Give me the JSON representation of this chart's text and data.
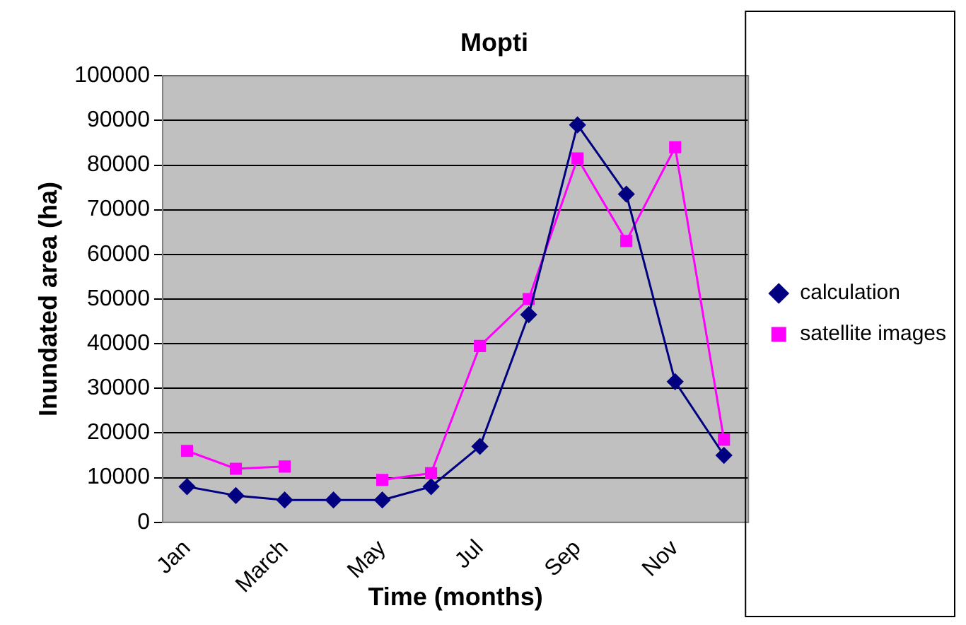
{
  "chart_data": {
    "type": "line",
    "title": "Mopti",
    "xlabel": "Time (months)",
    "ylabel": "Inundated area (ha)",
    "categories": [
      "Jan",
      null,
      "March",
      null,
      "May",
      null,
      "Jul",
      null,
      "Sep",
      null,
      "Nov",
      null
    ],
    "series": [
      {
        "name": "calculation",
        "color": "#000080",
        "marker": "diamond",
        "values": [
          8000,
          6000,
          5000,
          5000,
          5000,
          8000,
          17000,
          46500,
          89000,
          73500,
          31500,
          15000
        ]
      },
      {
        "name": "satellite images",
        "color": "#ff00ff",
        "marker": "square",
        "values": [
          16000,
          12000,
          12500,
          null,
          9500,
          11000,
          39500,
          50000,
          81500,
          63000,
          84000,
          18500
        ]
      }
    ],
    "ylim": [
      0,
      100000
    ],
    "yticks": [
      0,
      10000,
      20000,
      30000,
      40000,
      50000,
      60000,
      70000,
      80000,
      90000,
      100000
    ],
    "grid": "y",
    "legend": "right",
    "line_style": "solid"
  }
}
